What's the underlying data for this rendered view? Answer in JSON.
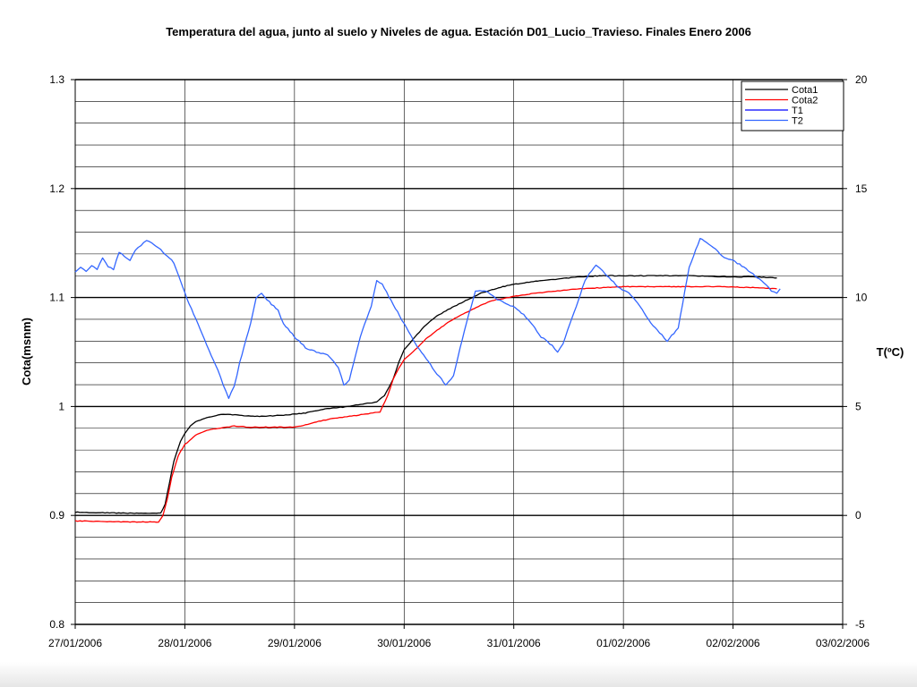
{
  "chart_data": {
    "type": "line",
    "title": "Temperatura del agua, junto al suelo y Niveles de agua. Estación D01_Lucio_Travieso. Finales Enero 2006",
    "ylabel": "Cota(msnm)",
    "y2label": "T(ºC)",
    "xlabel": "",
    "x_ticks": [
      "27/01/2006",
      "28/01/2006",
      "29/01/2006",
      "30/01/2006",
      "31/01/2006",
      "01/02/2006",
      "02/02/2006",
      "03/02/2006"
    ],
    "ylim": [
      0.8,
      1.3
    ],
    "y_ticks": [
      "0.8",
      "0.9",
      "1",
      "1.1",
      "1.2",
      "1.3"
    ],
    "y2lim": [
      -5,
      20
    ],
    "y2_ticks": [
      "-5",
      "0",
      "5",
      "10",
      "15",
      "20"
    ],
    "grid": true,
    "legend_position": "top-right",
    "x_unit": "days after 27/01/2006",
    "series": [
      {
        "name": "Cota1",
        "axis": "left",
        "color": "#000000",
        "points": [
          [
            0,
            0.903
          ],
          [
            0.5,
            0.902
          ],
          [
            0.78,
            0.902
          ],
          [
            0.82,
            0.91
          ],
          [
            0.86,
            0.93
          ],
          [
            0.9,
            0.95
          ],
          [
            0.96,
            0.968
          ],
          [
            1.0,
            0.975
          ],
          [
            1.05,
            0.982
          ],
          [
            1.1,
            0.986
          ],
          [
            1.2,
            0.99
          ],
          [
            1.35,
            0.993
          ],
          [
            1.5,
            0.992
          ],
          [
            1.6,
            0.991
          ],
          [
            1.7,
            0.991
          ],
          [
            1.9,
            0.992
          ],
          [
            2.1,
            0.994
          ],
          [
            2.3,
            0.998
          ],
          [
            2.5,
            1.0
          ],
          [
            2.6,
            1.002
          ],
          [
            2.75,
            1.004
          ],
          [
            2.82,
            1.01
          ],
          [
            2.9,
            1.025
          ],
          [
            2.95,
            1.04
          ],
          [
            3.0,
            1.052
          ],
          [
            3.1,
            1.064
          ],
          [
            3.2,
            1.075
          ],
          [
            3.3,
            1.083
          ],
          [
            3.4,
            1.089
          ],
          [
            3.5,
            1.094
          ],
          [
            3.6,
            1.099
          ],
          [
            3.7,
            1.104
          ],
          [
            3.8,
            1.107
          ],
          [
            3.9,
            1.11
          ],
          [
            4.0,
            1.112
          ],
          [
            4.2,
            1.115
          ],
          [
            4.4,
            1.117
          ],
          [
            4.6,
            1.119
          ],
          [
            4.8,
            1.12
          ],
          [
            5.0,
            1.12
          ],
          [
            5.3,
            1.12
          ],
          [
            5.6,
            1.12
          ],
          [
            5.9,
            1.119
          ],
          [
            6.2,
            1.119
          ],
          [
            6.4,
            1.118
          ]
        ]
      },
      {
        "name": "Cota2",
        "axis": "left",
        "color": "#ff0000",
        "points": [
          [
            0,
            0.895
          ],
          [
            0.5,
            0.894
          ],
          [
            0.76,
            0.894
          ],
          [
            0.8,
            0.9
          ],
          [
            0.84,
            0.915
          ],
          [
            0.88,
            0.935
          ],
          [
            0.94,
            0.955
          ],
          [
            1.0,
            0.965
          ],
          [
            1.1,
            0.974
          ],
          [
            1.2,
            0.978
          ],
          [
            1.3,
            0.98
          ],
          [
            1.45,
            0.982
          ],
          [
            1.6,
            0.981
          ],
          [
            1.8,
            0.981
          ],
          [
            2.0,
            0.981
          ],
          [
            2.1,
            0.983
          ],
          [
            2.2,
            0.986
          ],
          [
            2.35,
            0.989
          ],
          [
            2.5,
            0.991
          ],
          [
            2.65,
            0.993
          ],
          [
            2.78,
            0.995
          ],
          [
            2.85,
            1.01
          ],
          [
            2.9,
            1.025
          ],
          [
            2.95,
            1.035
          ],
          [
            3.0,
            1.043
          ],
          [
            3.1,
            1.052
          ],
          [
            3.2,
            1.062
          ],
          [
            3.3,
            1.07
          ],
          [
            3.4,
            1.077
          ],
          [
            3.5,
            1.083
          ],
          [
            3.6,
            1.088
          ],
          [
            3.7,
            1.093
          ],
          [
            3.8,
            1.097
          ],
          [
            3.9,
            1.099
          ],
          [
            4.0,
            1.101
          ],
          [
            4.2,
            1.104
          ],
          [
            4.4,
            1.106
          ],
          [
            4.6,
            1.108
          ],
          [
            4.8,
            1.109
          ],
          [
            5.0,
            1.11
          ],
          [
            5.3,
            1.11
          ],
          [
            5.6,
            1.11
          ],
          [
            5.9,
            1.11
          ],
          [
            6.2,
            1.109
          ],
          [
            6.4,
            1.108
          ]
        ]
      },
      {
        "name": "T1",
        "axis": "right",
        "color": "#0000ff",
        "points": []
      },
      {
        "name": "T2",
        "axis": "right",
        "color": "#3366ff",
        "points": [
          [
            0,
            11.2
          ],
          [
            0.05,
            11.4
          ],
          [
            0.1,
            11.2
          ],
          [
            0.15,
            11.5
          ],
          [
            0.2,
            11.3
          ],
          [
            0.25,
            11.8
          ],
          [
            0.3,
            11.4
          ],
          [
            0.35,
            11.3
          ],
          [
            0.4,
            12.1
          ],
          [
            0.45,
            11.9
          ],
          [
            0.5,
            11.7
          ],
          [
            0.55,
            12.2
          ],
          [
            0.6,
            12.4
          ],
          [
            0.65,
            12.6
          ],
          [
            0.7,
            12.5
          ],
          [
            0.8,
            12.1
          ],
          [
            0.9,
            11.6
          ],
          [
            1.0,
            10.2
          ],
          [
            1.1,
            9.0
          ],
          [
            1.2,
            7.8
          ],
          [
            1.3,
            6.7
          ],
          [
            1.35,
            6.0
          ],
          [
            1.4,
            5.4
          ],
          [
            1.45,
            5.9
          ],
          [
            1.5,
            7.0
          ],
          [
            1.6,
            8.8
          ],
          [
            1.65,
            10.0
          ],
          [
            1.7,
            10.2
          ],
          [
            1.75,
            9.9
          ],
          [
            1.85,
            9.4
          ],
          [
            1.9,
            8.8
          ],
          [
            2.0,
            8.2
          ],
          [
            2.1,
            7.7
          ],
          [
            2.2,
            7.5
          ],
          [
            2.3,
            7.4
          ],
          [
            2.4,
            6.8
          ],
          [
            2.45,
            6.0
          ],
          [
            2.5,
            6.2
          ],
          [
            2.6,
            8.2
          ],
          [
            2.7,
            9.6
          ],
          [
            2.75,
            10.8
          ],
          [
            2.8,
            10.6
          ],
          [
            2.9,
            9.7
          ],
          [
            3.0,
            8.8
          ],
          [
            3.1,
            7.9
          ],
          [
            3.2,
            7.2
          ],
          [
            3.3,
            6.5
          ],
          [
            3.38,
            6.0
          ],
          [
            3.45,
            6.4
          ],
          [
            3.55,
            8.5
          ],
          [
            3.65,
            10.3
          ],
          [
            3.75,
            10.3
          ],
          [
            3.85,
            9.9
          ],
          [
            3.95,
            9.7
          ],
          [
            4.05,
            9.4
          ],
          [
            4.15,
            8.9
          ],
          [
            4.25,
            8.2
          ],
          [
            4.35,
            7.8
          ],
          [
            4.4,
            7.5
          ],
          [
            4.45,
            7.9
          ],
          [
            4.55,
            9.3
          ],
          [
            4.65,
            10.8
          ],
          [
            4.75,
            11.5
          ],
          [
            4.85,
            11.0
          ],
          [
            4.95,
            10.5
          ],
          [
            5.05,
            10.2
          ],
          [
            5.15,
            9.6
          ],
          [
            5.25,
            8.8
          ],
          [
            5.35,
            8.3
          ],
          [
            5.4,
            8.0
          ],
          [
            5.5,
            8.6
          ],
          [
            5.6,
            11.4
          ],
          [
            5.7,
            12.7
          ],
          [
            5.8,
            12.4
          ],
          [
            5.9,
            11.9
          ],
          [
            6.0,
            11.7
          ],
          [
            6.1,
            11.4
          ],
          [
            6.2,
            11.0
          ],
          [
            6.3,
            10.6
          ],
          [
            6.35,
            10.3
          ],
          [
            6.4,
            10.2
          ],
          [
            6.43,
            10.4
          ]
        ]
      }
    ]
  }
}
